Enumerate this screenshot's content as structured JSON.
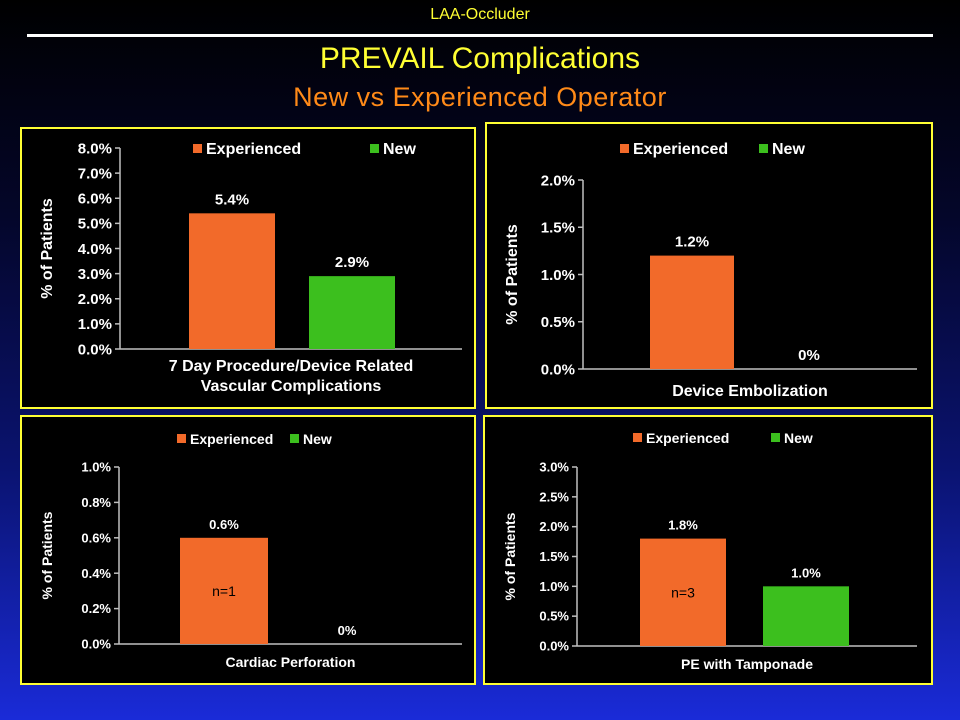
{
  "header": {
    "top_label": "LAA-Occluder",
    "title": "PREVAIL Complications",
    "subtitle": "New vs Experienced Operator"
  },
  "colors": {
    "experienced": "#f26a2a",
    "new": "#3cbf1e",
    "panel_border": "#ffff33",
    "title": "#ffff33",
    "subtitle": "#ff8a18"
  },
  "chart_data": [
    {
      "type": "bar",
      "categories": [
        "Experienced",
        "New"
      ],
      "values": [
        5.4,
        2.9
      ],
      "value_labels": [
        "5.4%",
        "2.9%"
      ],
      "xlabel_lines": [
        "7 Day Procedure/Device Related",
        "Vascular Complications"
      ],
      "ylabel": "% of Patients",
      "ylim": [
        0,
        8
      ],
      "yticks": [
        0,
        1,
        2,
        3,
        4,
        5,
        6,
        7,
        8
      ],
      "ytick_labels": [
        "0.0%",
        "1.0%",
        "2.0%",
        "3.0%",
        "4.0%",
        "5.0%",
        "6.0%",
        "7.0%",
        "8.0%"
      ],
      "legend": [
        "Experienced",
        "New"
      ],
      "legend_position": "top",
      "bar_annotations": [
        "",
        ""
      ],
      "grid": false
    },
    {
      "type": "bar",
      "categories": [
        "Experienced",
        "New"
      ],
      "values": [
        1.2,
        0
      ],
      "value_labels": [
        "1.2%",
        "0%"
      ],
      "xlabel_lines": [
        "Device Embolization"
      ],
      "ylabel": "% of Patients",
      "ylim": [
        0,
        2
      ],
      "yticks": [
        0,
        0.5,
        1,
        1.5,
        2
      ],
      "ytick_labels": [
        "0.0%",
        "0.5%",
        "1.0%",
        "1.5%",
        "2.0%"
      ],
      "legend": [
        "Experienced",
        "New"
      ],
      "legend_position": "top",
      "bar_annotations": [
        "",
        ""
      ],
      "grid": false
    },
    {
      "type": "bar",
      "categories": [
        "Experienced",
        "New"
      ],
      "values": [
        0.6,
        0
      ],
      "value_labels": [
        "0.6%",
        "0%"
      ],
      "xlabel_lines": [
        "Cardiac Perforation"
      ],
      "ylabel": "% of Patients",
      "ylim": [
        0,
        1
      ],
      "yticks": [
        0,
        0.2,
        0.4,
        0.6,
        0.8,
        1.0
      ],
      "ytick_labels": [
        "0.0%",
        "0.2%",
        "0.4%",
        "0.6%",
        "0.8%",
        "1.0%"
      ],
      "legend": [
        "Experienced",
        "New"
      ],
      "legend_position": "top",
      "bar_annotations": [
        "n=1",
        ""
      ],
      "grid": false
    },
    {
      "type": "bar",
      "categories": [
        "Experienced",
        "New"
      ],
      "values": [
        1.8,
        1.0
      ],
      "value_labels": [
        "1.8%",
        "1.0%"
      ],
      "xlabel_lines": [
        "PE with Tamponade"
      ],
      "ylabel": "% of Patients",
      "ylim": [
        0,
        3
      ],
      "yticks": [
        0,
        0.5,
        1,
        1.5,
        2,
        2.5,
        3
      ],
      "ytick_labels": [
        "0.0%",
        "0.5%",
        "1.0%",
        "1.5%",
        "2.0%",
        "2.5%",
        "3.0%"
      ],
      "legend": [
        "Experienced",
        "New"
      ],
      "legend_position": "top",
      "bar_annotations": [
        "n=3",
        ""
      ],
      "grid": false
    }
  ]
}
